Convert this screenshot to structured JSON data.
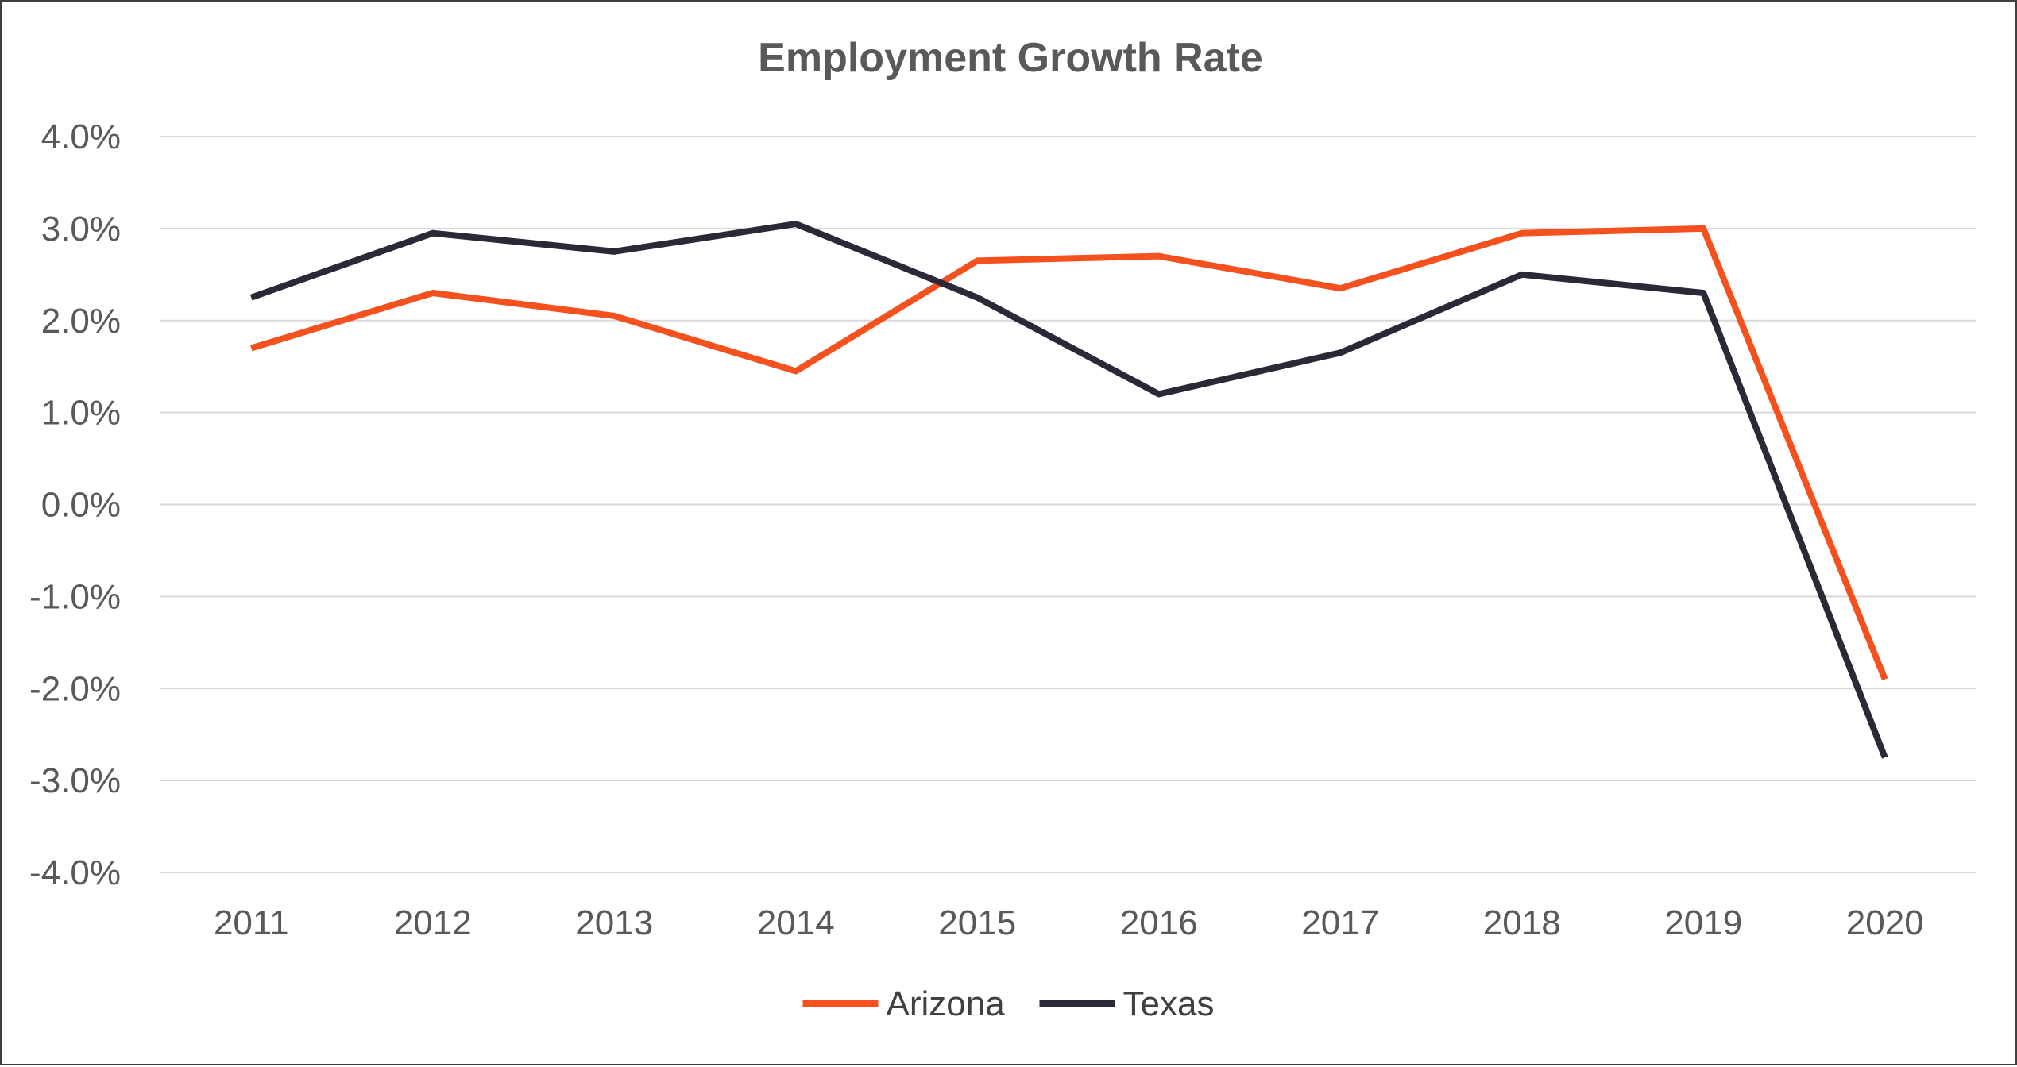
{
  "chart_data": {
    "type": "line",
    "title": "Employment Growth Rate",
    "xlabel": "",
    "ylabel": "",
    "categories": [
      "2011",
      "2012",
      "2013",
      "2014",
      "2015",
      "2016",
      "2017",
      "2018",
      "2019",
      "2020"
    ],
    "series": [
      {
        "name": "Arizona",
        "color": "#f4511e",
        "values": [
          1.7,
          2.3,
          2.05,
          1.45,
          2.65,
          2.7,
          2.35,
          2.95,
          3.0,
          -1.9
        ]
      },
      {
        "name": "Texas",
        "color": "#2b2838",
        "values": [
          2.25,
          2.95,
          2.75,
          3.05,
          2.25,
          1.2,
          1.65,
          2.5,
          2.3,
          -2.75
        ]
      }
    ],
    "ylim": [
      -4.0,
      4.0
    ],
    "yticks": [
      4.0,
      3.0,
      2.0,
      1.0,
      0.0,
      -1.0,
      -2.0,
      -3.0,
      -4.0
    ],
    "ytick_labels": [
      "4.0%",
      "3.0%",
      "2.0%",
      "1.0%",
      "0.0%",
      "-1.0%",
      "-2.0%",
      "-3.0%",
      "-4.0%"
    ],
    "grid": true,
    "legend": "bottom-center"
  }
}
